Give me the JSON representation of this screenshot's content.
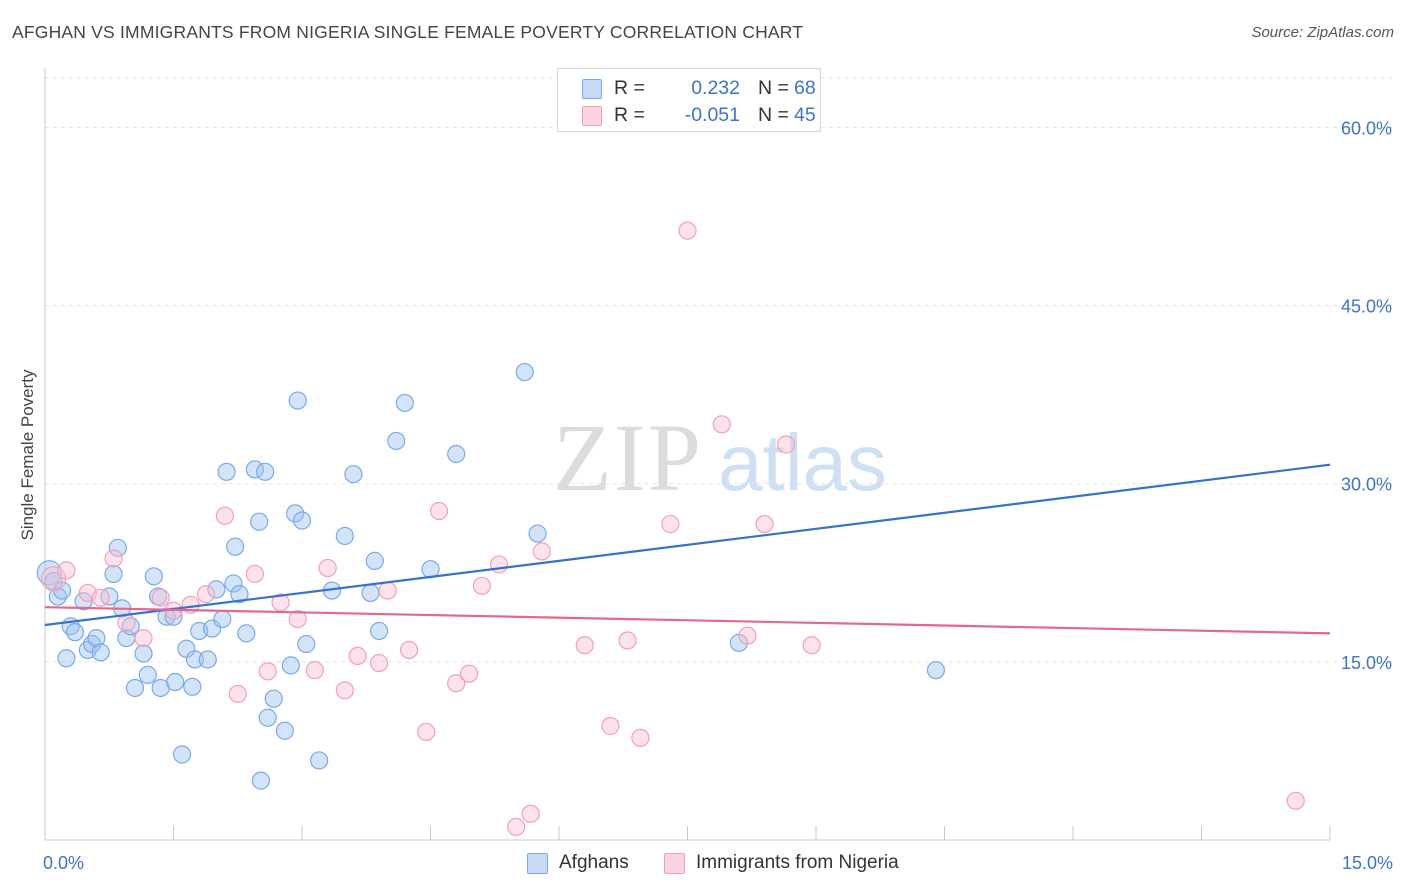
{
  "title": "AFGHAN VS IMMIGRANTS FROM NIGERIA SINGLE FEMALE POVERTY CORRELATION CHART",
  "source": "Source: ZipAtlas.com",
  "watermark": {
    "zip": "ZIP",
    "atlas": "atlas"
  },
  "legend": {
    "rows": [
      {
        "r_label": "R =",
        "r_value": "0.232",
        "n_label": "N =",
        "n_value": "68",
        "color": "#7aaae8"
      },
      {
        "r_label": "R =",
        "r_value": "-0.051",
        "n_label": "N =",
        "n_value": "45",
        "color": "#f1a0bb"
      }
    ]
  },
  "bottom_legend": [
    {
      "label": "Afghans",
      "color": "#7aaae8"
    },
    {
      "label": "Immigrants from Nigeria",
      "color": "#f1a0bb"
    }
  ],
  "chart_data": {
    "type": "scatter",
    "title": "AFGHAN VS IMMIGRANTS FROM NIGERIA SINGLE FEMALE POVERTY CORRELATION CHART",
    "xlabel": "",
    "ylabel": "Single Female Poverty",
    "xlim": [
      0,
      15
    ],
    "ylim": [
      0,
      65
    ],
    "x_tick_labels": [
      {
        "value": 0,
        "label": "0.0%"
      },
      {
        "value": 15,
        "label": "15.0%"
      }
    ],
    "y_tick_labels": [
      {
        "value": 15,
        "label": "15.0%"
      },
      {
        "value": 30,
        "label": "30.0%"
      },
      {
        "value": 45,
        "label": "45.0%"
      },
      {
        "value": 60,
        "label": "60.0%"
      }
    ],
    "grid": true,
    "legend_position": "top-center",
    "series": [
      {
        "name": "Afghans",
        "color": "#7aaae8",
        "line_color": "#3372cf",
        "trend": {
          "x": [
            0,
            15
          ],
          "y": [
            18.1,
            31.6
          ]
        },
        "points": [
          [
            0.05,
            22.5
          ],
          [
            0.1,
            21.8
          ],
          [
            0.15,
            20.5
          ],
          [
            0.2,
            21.0
          ],
          [
            0.25,
            15.3
          ],
          [
            0.3,
            18.0
          ],
          [
            0.35,
            17.5
          ],
          [
            0.45,
            20.1
          ],
          [
            0.5,
            16.0
          ],
          [
            0.55,
            16.5
          ],
          [
            0.6,
            17.0
          ],
          [
            0.65,
            15.8
          ],
          [
            0.75,
            20.5
          ],
          [
            0.8,
            22.4
          ],
          [
            0.85,
            24.6
          ],
          [
            0.9,
            19.5
          ],
          [
            0.95,
            17.0
          ],
          [
            1.0,
            18.0
          ],
          [
            1.05,
            12.8
          ],
          [
            1.15,
            15.7
          ],
          [
            1.2,
            13.9
          ],
          [
            1.27,
            22.2
          ],
          [
            1.32,
            20.5
          ],
          [
            1.35,
            12.8
          ],
          [
            1.42,
            18.8
          ],
          [
            1.5,
            18.8
          ],
          [
            1.52,
            13.3
          ],
          [
            1.6,
            7.2
          ],
          [
            1.65,
            16.1
          ],
          [
            1.72,
            12.9
          ],
          [
            1.75,
            15.2
          ],
          [
            1.8,
            17.6
          ],
          [
            1.9,
            15.2
          ],
          [
            1.95,
            17.8
          ],
          [
            2.0,
            21.1
          ],
          [
            2.07,
            18.6
          ],
          [
            2.12,
            31.0
          ],
          [
            2.2,
            21.6
          ],
          [
            2.22,
            24.7
          ],
          [
            2.27,
            20.7
          ],
          [
            2.35,
            17.4
          ],
          [
            2.45,
            31.2
          ],
          [
            2.5,
            26.8
          ],
          [
            2.52,
            5.0
          ],
          [
            2.57,
            31.0
          ],
          [
            2.6,
            10.3
          ],
          [
            2.67,
            11.9
          ],
          [
            2.8,
            9.2
          ],
          [
            2.87,
            14.7
          ],
          [
            2.92,
            27.5
          ],
          [
            2.95,
            37.0
          ],
          [
            3.0,
            26.9
          ],
          [
            3.05,
            16.5
          ],
          [
            3.2,
            6.7
          ],
          [
            3.35,
            21.0
          ],
          [
            3.5,
            25.6
          ],
          [
            3.6,
            30.8
          ],
          [
            3.8,
            20.8
          ],
          [
            3.85,
            23.5
          ],
          [
            3.9,
            17.6
          ],
          [
            4.1,
            33.6
          ],
          [
            4.2,
            36.8
          ],
          [
            4.5,
            22.8
          ],
          [
            4.8,
            32.5
          ],
          [
            5.6,
            39.4
          ],
          [
            5.75,
            25.8
          ],
          [
            8.1,
            16.6
          ],
          [
            10.4,
            14.3
          ]
        ]
      },
      {
        "name": "Immigrants from Nigeria",
        "color": "#f1a0bb",
        "line_color": "#e16891",
        "trend": {
          "x": [
            0,
            15
          ],
          "y": [
            19.6,
            17.4
          ]
        },
        "points": [
          [
            0.1,
            22.0
          ],
          [
            0.25,
            22.7
          ],
          [
            0.5,
            20.8
          ],
          [
            0.65,
            20.4
          ],
          [
            0.8,
            23.7
          ],
          [
            0.95,
            18.3
          ],
          [
            1.15,
            17.0
          ],
          [
            1.35,
            20.4
          ],
          [
            1.5,
            19.3
          ],
          [
            1.7,
            19.8
          ],
          [
            1.88,
            20.7
          ],
          [
            2.1,
            27.3
          ],
          [
            2.25,
            12.3
          ],
          [
            2.45,
            22.4
          ],
          [
            2.6,
            14.2
          ],
          [
            2.75,
            20.0
          ],
          [
            2.95,
            18.6
          ],
          [
            3.15,
            14.3
          ],
          [
            3.3,
            22.9
          ],
          [
            3.5,
            12.6
          ],
          [
            3.65,
            15.5
          ],
          [
            3.9,
            14.9
          ],
          [
            4.0,
            21.0
          ],
          [
            4.25,
            16.0
          ],
          [
            4.45,
            9.1
          ],
          [
            4.6,
            27.7
          ],
          [
            4.8,
            13.2
          ],
          [
            4.95,
            14.0
          ],
          [
            5.1,
            21.4
          ],
          [
            5.3,
            23.2
          ],
          [
            5.5,
            1.1
          ],
          [
            5.67,
            2.2
          ],
          [
            5.8,
            24.3
          ],
          [
            6.3,
            16.4
          ],
          [
            6.6,
            9.6
          ],
          [
            6.8,
            16.8
          ],
          [
            6.95,
            8.6
          ],
          [
            7.3,
            26.6
          ],
          [
            7.5,
            51.3
          ],
          [
            7.9,
            35.0
          ],
          [
            8.2,
            17.2
          ],
          [
            8.4,
            26.6
          ],
          [
            8.65,
            33.3
          ],
          [
            8.95,
            16.4
          ],
          [
            14.6,
            3.3
          ]
        ]
      }
    ]
  }
}
